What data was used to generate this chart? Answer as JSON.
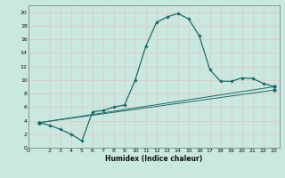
{
  "title": "",
  "xlabel": "Humidex (Indice chaleur)",
  "xlim": [
    0,
    23.5
  ],
  "ylim": [
    0,
    21
  ],
  "xticks": [
    0,
    2,
    3,
    4,
    5,
    6,
    7,
    8,
    9,
    10,
    11,
    12,
    13,
    14,
    15,
    16,
    17,
    18,
    19,
    20,
    21,
    22,
    23
  ],
  "yticks": [
    0,
    2,
    4,
    6,
    8,
    10,
    12,
    14,
    16,
    18,
    20
  ],
  "bg_color": "#c8e8e0",
  "line_color": "#1a6b6b",
  "grid_color_major": "#e8c8c8",
  "grid_color_minor": "#e8c8c8",
  "main_curve_x": [
    1,
    2,
    3,
    4,
    5,
    6,
    7,
    8,
    9,
    10,
    11,
    12,
    13,
    14,
    15,
    16,
    17,
    18,
    19,
    20,
    21,
    22,
    23
  ],
  "main_curve_y": [
    3.7,
    3.3,
    2.7,
    2.0,
    1.0,
    5.3,
    5.5,
    6.0,
    6.3,
    10.0,
    15.0,
    18.5,
    19.3,
    19.8,
    19.0,
    16.5,
    11.5,
    9.8,
    9.8,
    10.3,
    10.2,
    9.5,
    9.0
  ],
  "lower_curve1_x": [
    1,
    23
  ],
  "lower_curve1_y": [
    3.7,
    9.0
  ],
  "lower_curve2_x": [
    1,
    23
  ],
  "lower_curve2_y": [
    3.7,
    8.5
  ]
}
